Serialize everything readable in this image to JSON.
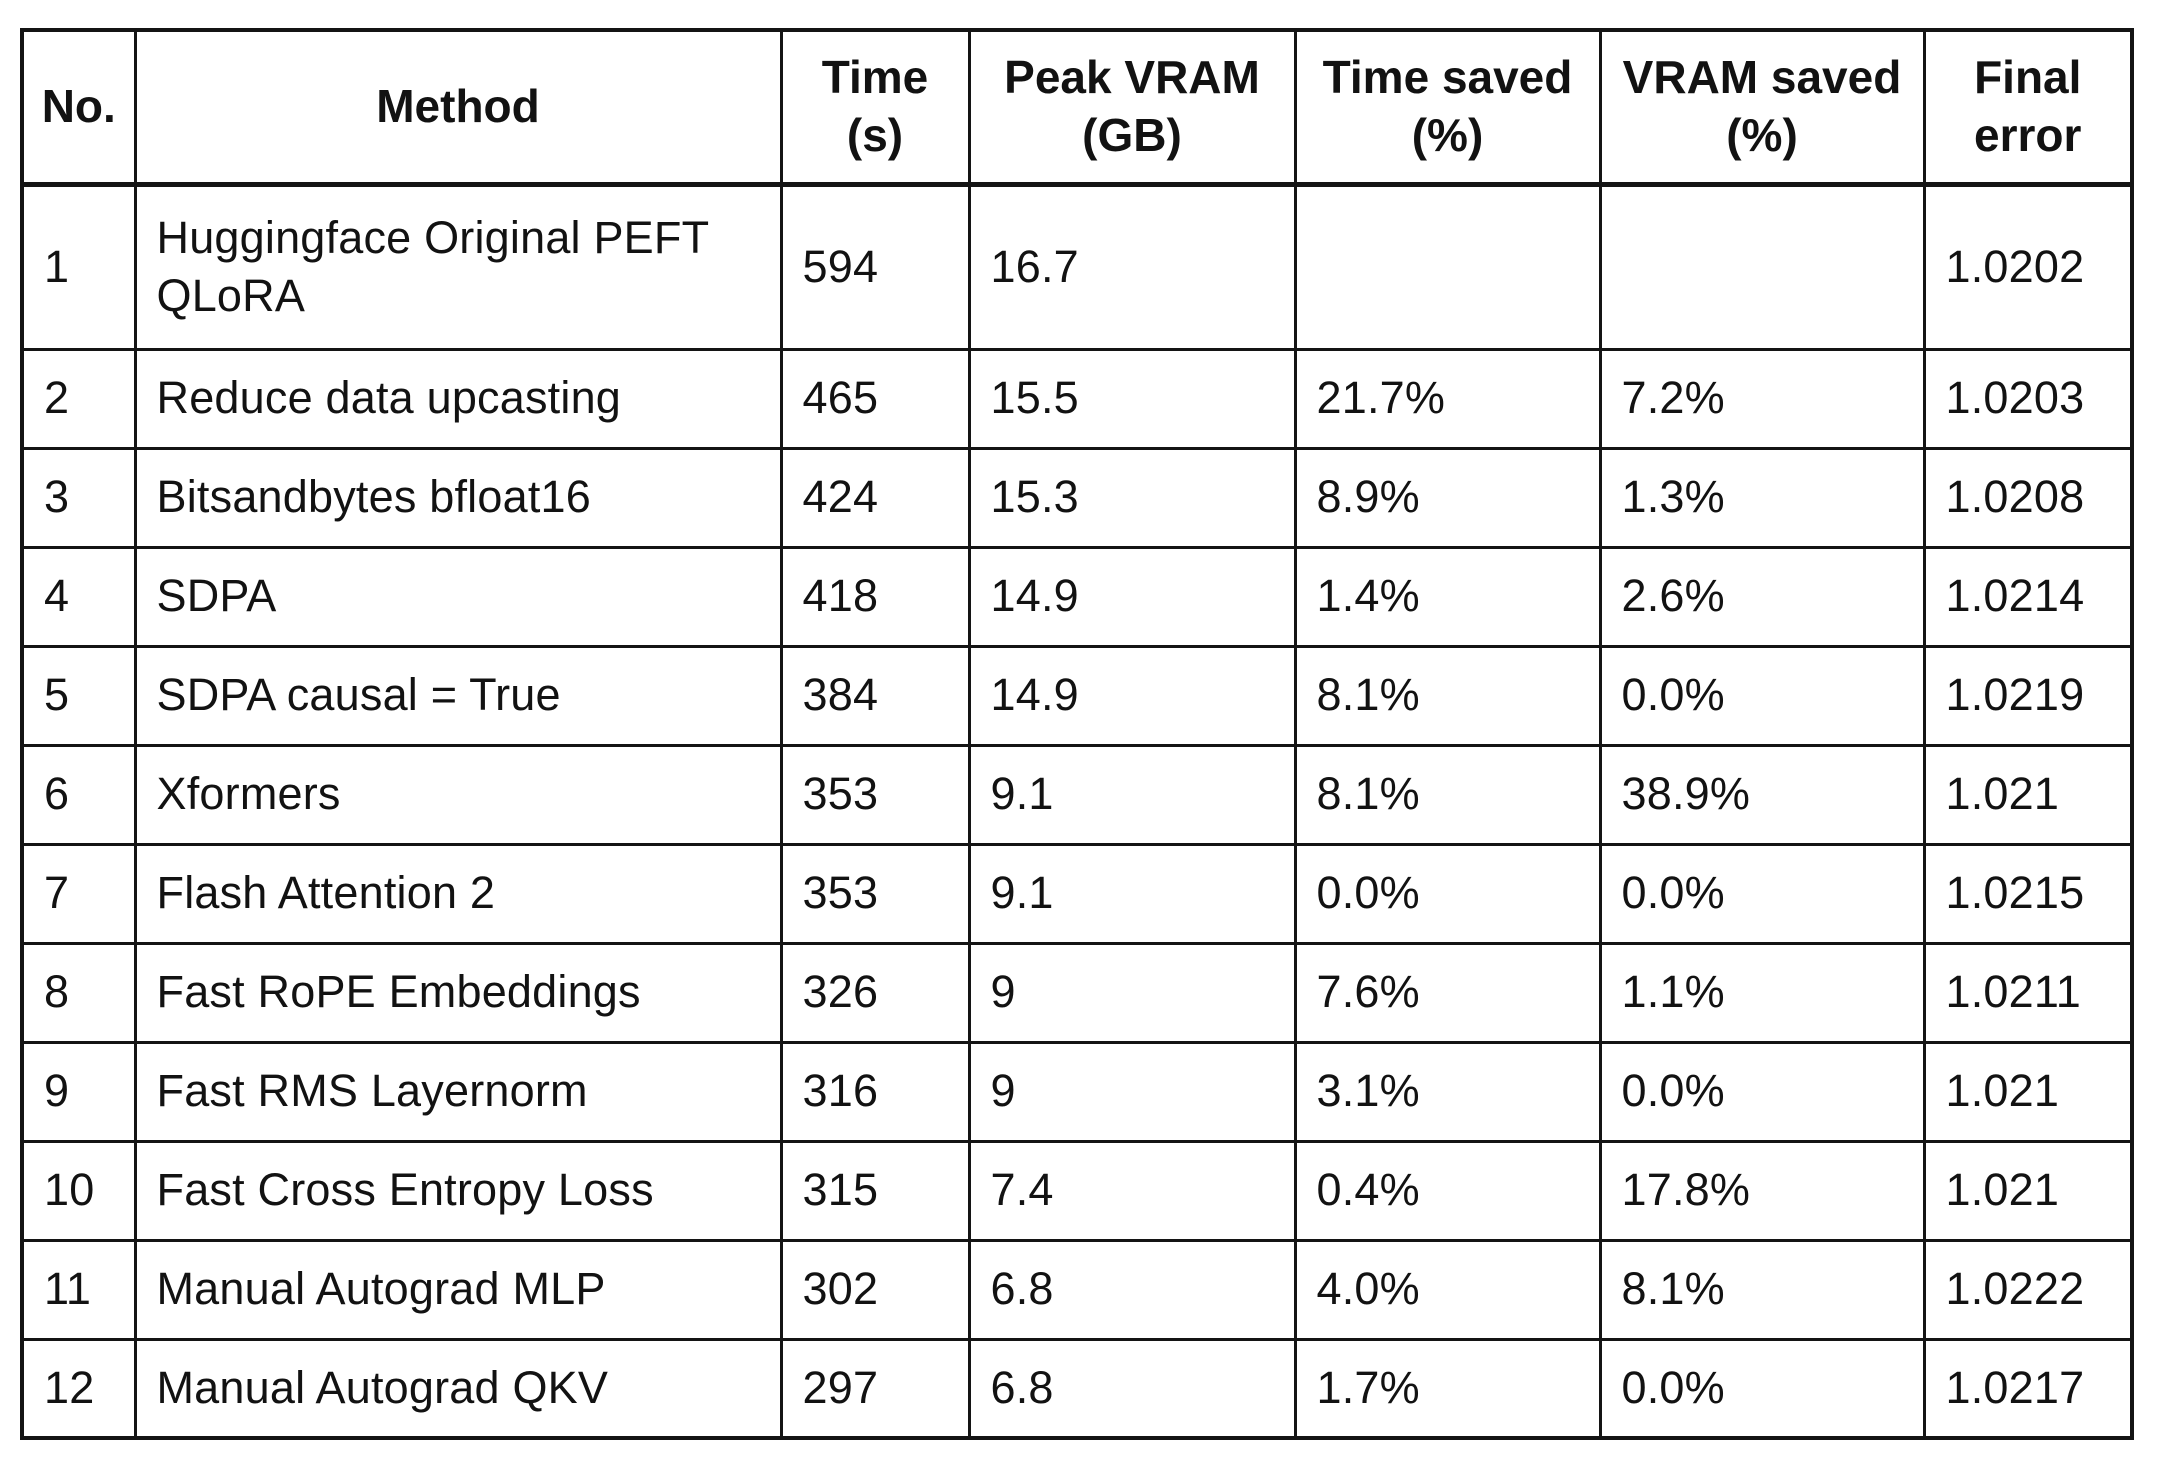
{
  "header": {
    "no": "No.",
    "method": "Method",
    "time_line1": "Time",
    "time_line2": "(s)",
    "peak_vram_line1": "Peak VRAM",
    "peak_vram_line2": "(GB)",
    "time_saved_line1": "Time saved",
    "time_saved_line2": "(%)",
    "vram_saved_line1": "VRAM saved",
    "vram_saved_line2": "(%)",
    "final_error_line1": "Final",
    "final_error_line2": "error"
  },
  "rows": [
    {
      "no": "1",
      "method": "Huggingface Original PEFT QLoRA",
      "time_s": "594",
      "peak_vram_gb": "16.7",
      "time_saved_pct": "",
      "vram_saved_pct": "",
      "final_error": "1.0202"
    },
    {
      "no": "2",
      "method": "Reduce data upcasting",
      "time_s": "465",
      "peak_vram_gb": "15.5",
      "time_saved_pct": "21.7%",
      "vram_saved_pct": "7.2%",
      "final_error": "1.0203"
    },
    {
      "no": "3",
      "method": "Bitsandbytes bfloat16",
      "time_s": "424",
      "peak_vram_gb": "15.3",
      "time_saved_pct": "8.9%",
      "vram_saved_pct": "1.3%",
      "final_error": "1.0208"
    },
    {
      "no": "4",
      "method": "SDPA",
      "time_s": "418",
      "peak_vram_gb": "14.9",
      "time_saved_pct": "1.4%",
      "vram_saved_pct": "2.6%",
      "final_error": "1.0214"
    },
    {
      "no": "5",
      "method": "SDPA causal = True",
      "time_s": "384",
      "peak_vram_gb": "14.9",
      "time_saved_pct": "8.1%",
      "vram_saved_pct": "0.0%",
      "final_error": "1.0219"
    },
    {
      "no": "6",
      "method": "Xformers",
      "time_s": "353",
      "peak_vram_gb": "9.1",
      "time_saved_pct": "8.1%",
      "vram_saved_pct": "38.9%",
      "final_error": "1.021"
    },
    {
      "no": "7",
      "method": "Flash Attention 2",
      "time_s": "353",
      "peak_vram_gb": "9.1",
      "time_saved_pct": "0.0%",
      "vram_saved_pct": "0.0%",
      "final_error": "1.0215"
    },
    {
      "no": "8",
      "method": "Fast RoPE Embeddings",
      "time_s": "326",
      "peak_vram_gb": "9",
      "time_saved_pct": "7.6%",
      "vram_saved_pct": "1.1%",
      "final_error": "1.0211"
    },
    {
      "no": "9",
      "method": "Fast RMS Layernorm",
      "time_s": "316",
      "peak_vram_gb": "9",
      "time_saved_pct": "3.1%",
      "vram_saved_pct": "0.0%",
      "final_error": "1.021"
    },
    {
      "no": "10",
      "method": "Fast Cross Entropy Loss",
      "time_s": "315",
      "peak_vram_gb": "7.4",
      "time_saved_pct": "0.4%",
      "vram_saved_pct": "17.8%",
      "final_error": "1.021"
    },
    {
      "no": "11",
      "method": "Manual Autograd MLP",
      "time_s": "302",
      "peak_vram_gb": "6.8",
      "time_saved_pct": "4.0%",
      "vram_saved_pct": "8.1%",
      "final_error": "1.0222"
    },
    {
      "no": "12",
      "method": "Manual Autograd QKV",
      "time_s": "297",
      "peak_vram_gb": "6.8",
      "time_saved_pct": "1.7%",
      "vram_saved_pct": "0.0%",
      "final_error": "1.0217"
    }
  ],
  "colors": {
    "text": "#121212",
    "border": "#141414",
    "background": "#ffffff"
  },
  "chart_data": {
    "type": "table",
    "title": "",
    "columns": [
      "No.",
      "Method",
      "Time (s)",
      "Peak VRAM (GB)",
      "Time saved (%)",
      "VRAM saved (%)",
      "Final error"
    ],
    "rows": [
      [
        1,
        "Huggingface Original PEFT QLoRA",
        594,
        16.7,
        null,
        null,
        1.0202
      ],
      [
        2,
        "Reduce data upcasting",
        465,
        15.5,
        21.7,
        7.2,
        1.0203
      ],
      [
        3,
        "Bitsandbytes bfloat16",
        424,
        15.3,
        8.9,
        1.3,
        1.0208
      ],
      [
        4,
        "SDPA",
        418,
        14.9,
        1.4,
        2.6,
        1.0214
      ],
      [
        5,
        "SDPA causal = True",
        384,
        14.9,
        8.1,
        0.0,
        1.0219
      ],
      [
        6,
        "Xformers",
        353,
        9.1,
        8.1,
        38.9,
        1.021
      ],
      [
        7,
        "Flash Attention 2",
        353,
        9.1,
        0.0,
        0.0,
        1.0215
      ],
      [
        8,
        "Fast RoPE Embeddings",
        326,
        9,
        7.6,
        1.1,
        1.0211
      ],
      [
        9,
        "Fast RMS Layernorm",
        316,
        9,
        3.1,
        0.0,
        1.021
      ],
      [
        10,
        "Fast Cross Entropy Loss",
        315,
        7.4,
        0.4,
        17.8,
        1.021
      ],
      [
        11,
        "Manual Autograd MLP",
        302,
        6.8,
        4.0,
        8.1,
        1.0222
      ],
      [
        12,
        "Manual Autograd QKV",
        297,
        6.8,
        1.7,
        0.0,
        1.0217
      ]
    ],
    "saved_pct_unit": "%",
    "grid": true,
    "legend_position": "none"
  }
}
